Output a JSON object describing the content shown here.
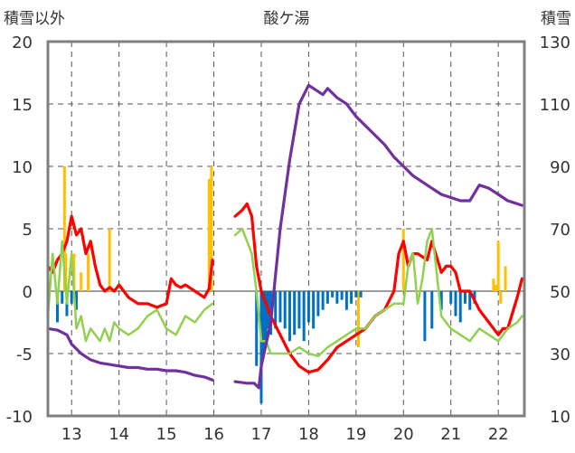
{
  "chart_data": {
    "type": "line",
    "title": "酸ケ湯",
    "y_left_label": "積雪以外",
    "y_right_label": "積雪",
    "ylim_left": [
      -10,
      20
    ],
    "ylim_right": [
      10,
      130
    ],
    "y_left_ticks": [
      20,
      15,
      10,
      5,
      0,
      -5,
      -10
    ],
    "y_right_ticks": [
      130,
      110,
      90,
      70,
      50,
      30,
      10
    ],
    "x_ticks": [
      "13",
      "14",
      "15",
      "16",
      "17",
      "18",
      "19",
      "20",
      "21",
      "22"
    ],
    "xlim": [
      12.5,
      22.55
    ],
    "colors": {
      "red": "#ff0000",
      "green": "#92d050",
      "purple": "#7030a0",
      "orange": "#ffc000",
      "blue": "#0070c0",
      "grid": "#555555",
      "frame": "#7f7f7f"
    },
    "series": [
      {
        "name": "red",
        "axis": "left",
        "x": [
          12.5,
          12.6,
          12.7,
          12.8,
          12.9,
          13.0,
          13.1,
          13.2,
          13.3,
          13.4,
          13.5,
          13.6,
          13.7,
          13.8,
          13.9,
          14.0,
          14.2,
          14.4,
          14.6,
          14.8,
          15.0,
          15.1,
          15.2,
          15.3,
          15.4,
          15.6,
          15.8,
          15.9,
          15.97,
          16.45,
          16.6,
          16.7,
          16.8,
          16.9,
          17.0,
          17.2,
          17.4,
          17.6,
          17.8,
          18.0,
          18.2,
          18.4,
          18.6,
          18.8,
          19.0,
          19.2,
          19.4,
          19.6,
          19.8,
          19.9,
          20.0,
          20.1,
          20.2,
          20.3,
          20.5,
          20.6,
          20.8,
          20.9,
          21.0,
          21.1,
          21.2,
          21.4,
          21.6,
          21.8,
          22.0,
          22.1,
          22.2,
          22.4,
          22.5
        ],
        "y": [
          2,
          1.5,
          2.5,
          3,
          4,
          6,
          4.5,
          5,
          3,
          4,
          2,
          0.5,
          0,
          0.3,
          0,
          0.5,
          -0.5,
          -1,
          -1,
          -1.3,
          -1,
          1,
          0.5,
          0.3,
          0.5,
          0,
          -0.5,
          0.2,
          2.5,
          6,
          6.5,
          7,
          6,
          2,
          0,
          -2,
          -3.5,
          -5,
          -6,
          -6.5,
          -6.3,
          -5.5,
          -4.5,
          -4,
          -3.5,
          -3,
          -2,
          -1.5,
          0,
          3,
          4,
          2,
          3,
          3,
          2.5,
          4,
          1.5,
          2,
          2,
          1.5,
          0,
          0,
          -1.5,
          -2.5,
          -3.5,
          -3,
          -3,
          -0.5,
          1
        ]
      },
      {
        "name": "green",
        "axis": "left",
        "x": [
          12.5,
          12.6,
          12.7,
          12.8,
          12.9,
          13.0,
          13.1,
          13.2,
          13.3,
          13.4,
          13.5,
          13.6,
          13.7,
          13.8,
          13.9,
          14.0,
          14.2,
          14.4,
          14.6,
          14.8,
          15.0,
          15.2,
          15.4,
          15.6,
          15.8,
          15.97,
          16.45,
          16.6,
          16.7,
          16.8,
          16.9,
          17.0,
          17.1,
          17.2,
          17.3,
          17.4,
          17.6,
          17.8,
          18.0,
          18.2,
          18.4,
          18.6,
          18.8,
          19.0,
          19.2,
          19.4,
          19.6,
          19.8,
          20.0,
          20.1,
          20.2,
          20.3,
          20.4,
          20.5,
          20.6,
          20.8,
          21.0,
          21.2,
          21.4,
          21.6,
          21.8,
          22.0,
          22.2,
          22.4,
          22.5
        ],
        "y": [
          -2,
          3,
          -1,
          4,
          -1,
          3,
          -3,
          -2,
          -4,
          -3,
          -3.5,
          -4,
          -3,
          -4,
          -2.5,
          -3,
          -3.5,
          -3,
          -2,
          -1.5,
          -3,
          -3.5,
          -2,
          -2.5,
          -1.5,
          -1,
          4.5,
          5,
          4,
          3,
          0,
          -4,
          -4,
          -5,
          -5,
          -5,
          -5,
          -4.5,
          -5,
          -5.2,
          -4.5,
          -4,
          -3.5,
          -3,
          -3,
          -2,
          -1.5,
          -1,
          -1,
          2,
          3,
          -1,
          1,
          4,
          5,
          -2,
          -3,
          -3.5,
          -4,
          -3,
          -3.5,
          -4,
          -3,
          -2.5,
          -2
        ]
      },
      {
        "name": "purple",
        "axis": "right",
        "x": [
          12.5,
          12.7,
          12.9,
          13.0,
          13.2,
          13.4,
          13.6,
          13.8,
          14.0,
          14.2,
          14.4,
          14.6,
          14.8,
          15.0,
          15.2,
          15.4,
          15.6,
          15.8,
          15.97,
          16.45,
          16.7,
          16.85,
          16.95,
          17.0,
          17.2,
          17.4,
          17.6,
          17.8,
          18.0,
          18.2,
          18.3,
          18.4,
          18.6,
          18.8,
          19.0,
          19.2,
          19.4,
          19.6,
          19.8,
          20.0,
          20.2,
          20.4,
          20.6,
          20.8,
          21.0,
          21.2,
          21.4,
          21.6,
          21.8,
          22.0,
          22.2,
          22.4,
          22.5
        ],
        "y": [
          38,
          37.5,
          36,
          33,
          30,
          28,
          27,
          26.5,
          26,
          25.5,
          25.5,
          25,
          25,
          24.5,
          24.5,
          24,
          23,
          22.5,
          21.5,
          21,
          20.5,
          20.5,
          19,
          26,
          40,
          70,
          92,
          110,
          116,
          114,
          113,
          115,
          112,
          110,
          106,
          103,
          100,
          97,
          93,
          90,
          87,
          85,
          83,
          81,
          80,
          79,
          79,
          84,
          83,
          81,
          79,
          78,
          77.5
        ]
      }
    ],
    "bars": [
      {
        "name": "orange",
        "axis": "left",
        "x": [
          12.85,
          12.88,
          13.05,
          13.2,
          13.35,
          13.8,
          15.9,
          15.95,
          19.05,
          20.0,
          21.9,
          21.95,
          22.0,
          22.05,
          22.15
        ],
        "y": [
          10,
          3,
          3,
          1.5,
          3,
          5,
          9,
          10,
          -4.5,
          5,
          1,
          0.5,
          4,
          -1,
          2
        ]
      },
      {
        "name": "blue",
        "axis": "left",
        "x": [
          12.7,
          12.8,
          12.9,
          13.0,
          13.1,
          16.9,
          17.0,
          17.05,
          17.1,
          17.15,
          17.2,
          17.3,
          17.4,
          17.5,
          17.6,
          17.7,
          17.8,
          17.9,
          18.0,
          18.1,
          18.2,
          18.3,
          18.4,
          18.5,
          18.6,
          18.7,
          18.8,
          18.9,
          19.0,
          19.1,
          20.45,
          20.6,
          20.8,
          21.0,
          21.1,
          21.2,
          21.3,
          21.4,
          21.5
        ],
        "y": [
          -2.5,
          -1,
          -2,
          -1,
          -1.5,
          -6,
          -9,
          -5,
          -4,
          -3,
          -3.5,
          -3,
          -2.5,
          -3,
          -4,
          -3.5,
          -3,
          -4,
          -2.5,
          -3,
          -2,
          -1.5,
          -1,
          -0.5,
          -1,
          -0.7,
          -1.5,
          -1,
          -0.5,
          -0.5,
          -4,
          -3,
          -1.5,
          -1,
          -2,
          -2.5,
          -1,
          -1.5,
          -1
        ]
      }
    ]
  }
}
